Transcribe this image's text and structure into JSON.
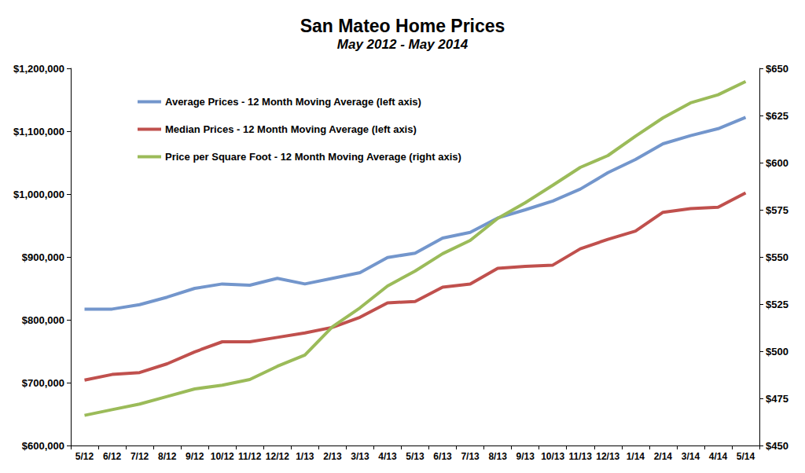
{
  "chart_data": {
    "type": "line",
    "title": "San Mateo Home Prices",
    "subtitle": "May 2012 - May 2014",
    "categories": [
      "5/12",
      "6/12",
      "7/12",
      "8/12",
      "9/12",
      "10/12",
      "11/12",
      "12/12",
      "1/13",
      "2/13",
      "3/13",
      "4/13",
      "5/13",
      "6/13",
      "7/13",
      "8/13",
      "9/13",
      "10/13",
      "11/13",
      "12/13",
      "1/14",
      "2/14",
      "3/14",
      "4/14",
      "5/14"
    ],
    "series": [
      {
        "name": "Average Prices - 12 Month Moving Average (left axis)",
        "color": "#7396cc",
        "values": [
          817000,
          817000,
          824000,
          836000,
          850000,
          857000,
          855000,
          866000,
          857000,
          866000,
          875000,
          899000,
          906000,
          930000,
          939000,
          962000,
          975000,
          989000,
          1008000,
          1034000,
          1055000,
          1080000,
          1093000,
          1104000,
          1122000
        ]
      },
      {
        "name": "Median Prices - 12 Month Moving Average (left axis)",
        "color": "#c0504d",
        "values": [
          704000,
          713000,
          716000,
          730000,
          749000,
          765000,
          765000,
          772000,
          779000,
          788000,
          804000,
          827000,
          829000,
          852000,
          857000,
          882000,
          885000,
          887000,
          913000,
          928000,
          941000,
          971000,
          977000,
          979000,
          1002000
        ]
      },
      {
        "name": "Price per Square Foot - 12 Month Moving Average (right axis)",
        "color": "#9bbb59",
        "axis": "y2",
        "values": [
          466,
          469,
          472,
          476,
          480,
          482,
          485,
          492,
          498,
          513,
          523,
          534.6,
          542.5,
          551.7,
          558.75,
          570.4,
          578.75,
          588,
          597.5,
          603.75,
          614,
          623.75,
          631.7,
          636,
          643
        ]
      }
    ],
    "ylim": [
      600000,
      1200000
    ],
    "yticks": [
      {
        "value": 600000,
        "label": "$600,000"
      },
      {
        "value": 700000,
        "label": "$700,000"
      },
      {
        "value": 800000,
        "label": "$800,000"
      },
      {
        "value": 900000,
        "label": "$900,000"
      },
      {
        "value": 1000000,
        "label": "$1,000,000"
      },
      {
        "value": 1100000,
        "label": "$1,100,000"
      },
      {
        "value": 1200000,
        "label": "$1,200,000"
      }
    ],
    "y2lim": [
      450,
      650
    ],
    "y2ticks": [
      {
        "value": 450,
        "label": "$450"
      },
      {
        "value": 475,
        "label": "$475"
      },
      {
        "value": 500,
        "label": "$500"
      },
      {
        "value": 525,
        "label": "$525"
      },
      {
        "value": 550,
        "label": "$550"
      },
      {
        "value": 575,
        "label": "$575"
      },
      {
        "value": 600,
        "label": "$600"
      },
      {
        "value": 625,
        "label": "$625"
      },
      {
        "value": 650,
        "label": "$650"
      }
    ],
    "grid": false,
    "legend": "upper left"
  }
}
